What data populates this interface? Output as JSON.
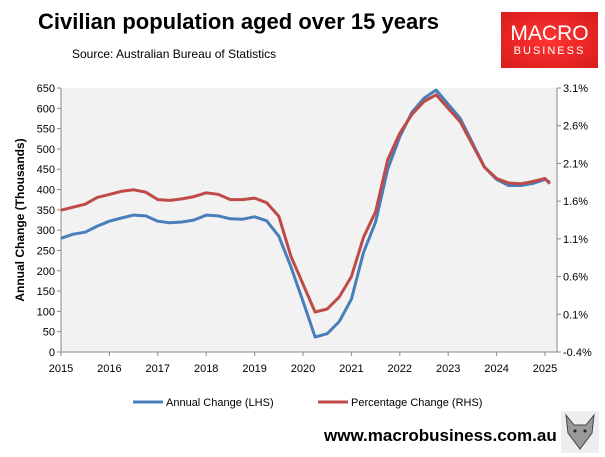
{
  "header": {
    "title": "Civilian population aged over 15 years",
    "source": "Source: Australian Bureau of Statistics"
  },
  "logo": {
    "line1": "MACRO",
    "line2": "BUSINESS"
  },
  "footer": {
    "url": "www.macrobusiness.com.au",
    "icon": "wolf-icon"
  },
  "chart_data": {
    "type": "line",
    "title": "Civilian population aged over 15 years",
    "ylabel": "Annual Change (Thousands)",
    "ylim": [
      0,
      650
    ],
    "y2lim": [
      -0.4,
      3.1
    ],
    "xlim": [
      2015,
      2025.3
    ],
    "yticks": [
      "0",
      "50",
      "100",
      "150",
      "200",
      "250",
      "300",
      "350",
      "400",
      "450",
      "500",
      "550",
      "600",
      "650"
    ],
    "y2ticks": [
      "-0.4%",
      "0.1%",
      "0.6%",
      "1.1%",
      "1.6%",
      "2.1%",
      "2.6%",
      "3.1%"
    ],
    "xticks": [
      "2015",
      "2016",
      "2017",
      "2018",
      "2019",
      "2020",
      "2021",
      "2022",
      "2023",
      "2024",
      "2025"
    ],
    "grid": false,
    "legend": "bottom",
    "x": [
      2015,
      2015.25,
      2015.5,
      2015.75,
      2016,
      2016.25,
      2016.5,
      2016.75,
      2017,
      2017.25,
      2017.5,
      2017.75,
      2018,
      2018.25,
      2018.5,
      2018.75,
      2019,
      2019.25,
      2019.5,
      2019.75,
      2020,
      2020.25,
      2020.5,
      2020.75,
      2021,
      2021.25,
      2021.5,
      2021.75,
      2022,
      2022.25,
      2022.5,
      2022.75,
      2023,
      2023.25,
      2023.5,
      2023.75,
      2024,
      2024.25,
      2024.5,
      2024.75,
      2025,
      2025.1
    ],
    "series": [
      {
        "name": "Annual Change (LHS)",
        "axis": "left",
        "color": "#4a7ebb",
        "values": [
          280,
          290,
          295,
          310,
          322,
          330,
          337,
          335,
          322,
          318,
          320,
          325,
          337,
          335,
          328,
          327,
          333,
          323,
          285,
          210,
          125,
          37,
          45,
          75,
          130,
          245,
          320,
          450,
          530,
          590,
          625,
          645,
          610,
          575,
          515,
          455,
          425,
          410,
          410,
          415,
          425,
          418
        ]
      },
      {
        "name": "Percentage Change (RHS)",
        "axis": "right",
        "color": "#be4b48",
        "values": [
          1.48,
          1.52,
          1.56,
          1.65,
          1.69,
          1.73,
          1.75,
          1.72,
          1.62,
          1.61,
          1.63,
          1.66,
          1.71,
          1.69,
          1.62,
          1.62,
          1.64,
          1.58,
          1.4,
          0.87,
          0.5,
          0.13,
          0.17,
          0.33,
          0.6,
          1.12,
          1.46,
          2.15,
          2.5,
          2.75,
          2.92,
          3.01,
          2.83,
          2.65,
          2.35,
          2.05,
          1.9,
          1.84,
          1.83,
          1.86,
          1.9,
          1.83
        ]
      }
    ]
  }
}
